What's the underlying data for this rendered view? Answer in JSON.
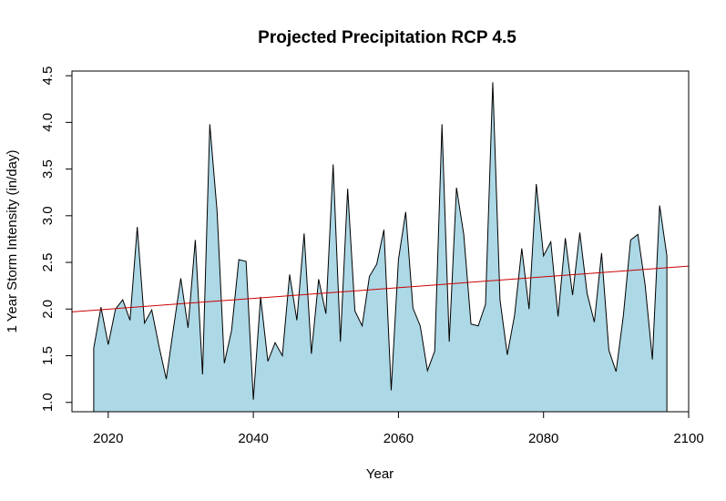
{
  "chart_data": {
    "type": "area",
    "title": "Projected Precipitation RCP 4.5",
    "xlabel": "Year",
    "ylabel": "1 Year Storm Intensity (in/day)",
    "xlim": [
      2015,
      2100
    ],
    "ylim": [
      0.9,
      4.55
    ],
    "xticks": [
      2020,
      2040,
      2060,
      2080,
      2100
    ],
    "yticks": [
      1.0,
      1.5,
      2.0,
      2.5,
      3.0,
      3.5,
      4.0,
      4.5
    ],
    "xtick_labels": [
      "2020",
      "2040",
      "2060",
      "2080",
      "2100"
    ],
    "ytick_labels": [
      "1.0",
      "1.5",
      "2.0",
      "2.5",
      "3.0",
      "3.5",
      "4.0",
      "4.5"
    ],
    "grid": false,
    "fill_color": "#add8e6",
    "line_color": "#000000",
    "trend_color": "#cc0000",
    "x": [
      2018,
      2019,
      2020,
      2021,
      2022,
      2023,
      2024,
      2025,
      2026,
      2027,
      2028,
      2029,
      2030,
      2031,
      2032,
      2033,
      2034,
      2035,
      2036,
      2037,
      2038,
      2039,
      2040,
      2041,
      2042,
      2043,
      2044,
      2045,
      2046,
      2047,
      2048,
      2049,
      2050,
      2051,
      2052,
      2053,
      2054,
      2055,
      2056,
      2057,
      2058,
      2059,
      2060,
      2061,
      2062,
      2063,
      2064,
      2065,
      2066,
      2067,
      2068,
      2069,
      2070,
      2071,
      2072,
      2073,
      2074,
      2075,
      2076,
      2077,
      2078,
      2079,
      2080,
      2081,
      2082,
      2083,
      2084,
      2085,
      2086,
      2087,
      2088,
      2089,
      2090,
      2091,
      2092,
      2093,
      2094,
      2095,
      2096,
      2097
    ],
    "values": [
      1.58,
      2.02,
      1.62,
      2.0,
      2.1,
      1.88,
      2.88,
      1.85,
      1.99,
      1.6,
      1.25,
      1.8,
      2.33,
      1.8,
      2.74,
      1.3,
      3.98,
      3.05,
      1.42,
      1.77,
      2.53,
      2.51,
      1.03,
      2.13,
      1.44,
      1.64,
      1.5,
      2.37,
      1.88,
      2.81,
      1.52,
      2.32,
      1.95,
      3.55,
      1.65,
      3.29,
      1.98,
      1.82,
      2.35,
      2.48,
      2.85,
      1.13,
      2.53,
      3.04,
      2.01,
      1.82,
      1.34,
      1.55,
      3.98,
      1.65,
      3.3,
      2.8,
      1.84,
      1.82,
      2.05,
      4.43,
      2.1,
      1.51,
      1.93,
      2.65,
      2.0,
      3.34,
      2.57,
      2.72,
      1.92,
      2.76,
      2.15,
      2.82,
      2.17,
      1.86,
      2.6,
      1.56,
      1.33,
      1.93,
      2.74,
      2.8,
      2.26,
      1.46,
      3.11,
      2.57
    ],
    "trend": {
      "x": [
        2015,
        2100
      ],
      "y": [
        1.97,
        2.46
      ]
    }
  }
}
